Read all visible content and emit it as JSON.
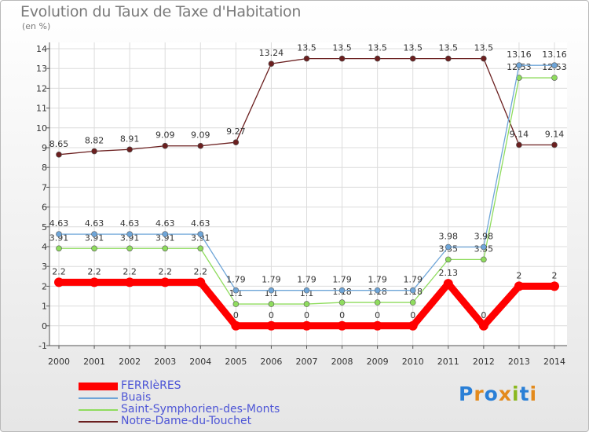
{
  "title": "Evolution du Taux de Taxe d'Habitation",
  "unit": "(en %)",
  "logo": {
    "text": "Proxiti",
    "letter_colors": [
      "#2a7fd6",
      "#e38a1c",
      "#2a7fd6",
      "#e38a1c",
      "#8ab81e",
      "#2a7fd6",
      "#e38a1c"
    ]
  },
  "chart_data": {
    "type": "line",
    "x": [
      "2000",
      "2001",
      "2002",
      "2003",
      "2004",
      "2005",
      "2006",
      "2007",
      "2008",
      "2009",
      "2010",
      "2011",
      "2012",
      "2013",
      "2014"
    ],
    "y_ticks": [
      "-1",
      "0",
      "1",
      "2",
      "3",
      "4",
      "5",
      "6",
      "7",
      "8",
      "9",
      "10",
      "11",
      "12",
      "13",
      "14"
    ],
    "ylim": [
      -1,
      14
    ],
    "grid": true,
    "series": [
      {
        "name": "Notre-Dame-du-Touchet",
        "color": "#6b1f1f",
        "values": [
          8.65,
          8.82,
          8.91,
          9.09,
          9.09,
          9.27,
          13.24,
          13.5,
          13.5,
          13.5,
          13.5,
          13.5,
          13.5,
          9.14,
          9.14
        ],
        "labels": [
          "8.65",
          "8.82",
          "8.91",
          "9.09",
          "9.09",
          "9.27",
          "13.24",
          "13.5",
          "13.5",
          "13.5",
          "13.5",
          "13.5",
          "13.5",
          "9.14",
          "9.14"
        ]
      },
      {
        "name": "Saint-Symphorien-des-Monts",
        "color": "#8fdc5e",
        "values": [
          3.91,
          3.91,
          3.91,
          3.91,
          3.91,
          1.1,
          1.1,
          1.1,
          1.18,
          1.18,
          1.18,
          3.35,
          3.35,
          12.53,
          12.53
        ],
        "labels": [
          "3.91",
          "3.91",
          "3.91",
          "3.91",
          "3.91",
          "1.1",
          "1.1",
          "1.1",
          "1.18",
          "1.18",
          "1.18",
          "3.35",
          "3.35",
          "12.53",
          "12.53"
        ]
      },
      {
        "name": "Buais",
        "color": "#6ea5d8",
        "values": [
          4.63,
          4.63,
          4.63,
          4.63,
          4.63,
          1.79,
          1.79,
          1.79,
          1.79,
          1.79,
          1.79,
          3.98,
          3.98,
          13.16,
          13.16
        ],
        "labels": [
          "4.63",
          "4.63",
          "4.63",
          "4.63",
          "4.63",
          "1.79",
          "1.79",
          "1.79",
          "1.79",
          "1.79",
          "1.79",
          "3.98",
          "3.98",
          "13.16",
          "13.16"
        ]
      },
      {
        "name": "FERRIèRES",
        "color": "#ff0000",
        "values": [
          2.2,
          2.2,
          2.2,
          2.2,
          2.2,
          0,
          0,
          0,
          0,
          0,
          0,
          2.13,
          0,
          2,
          2
        ],
        "labels": [
          "2.2",
          "2.2",
          "2.2",
          "2.2",
          "2.2",
          "0",
          "0",
          "0",
          "0",
          "0",
          "0",
          "2.13",
          "0",
          "2",
          "2"
        ]
      }
    ],
    "legend": [
      {
        "name": "FERRIèRES",
        "color": "#ff0000"
      },
      {
        "name": "Buais",
        "color": "#6ea5d8"
      },
      {
        "name": "Saint-Symphorien-des-Monts",
        "color": "#8fdc5e"
      },
      {
        "name": "Notre-Dame-du-Touchet",
        "color": "#6b1f1f"
      }
    ]
  }
}
